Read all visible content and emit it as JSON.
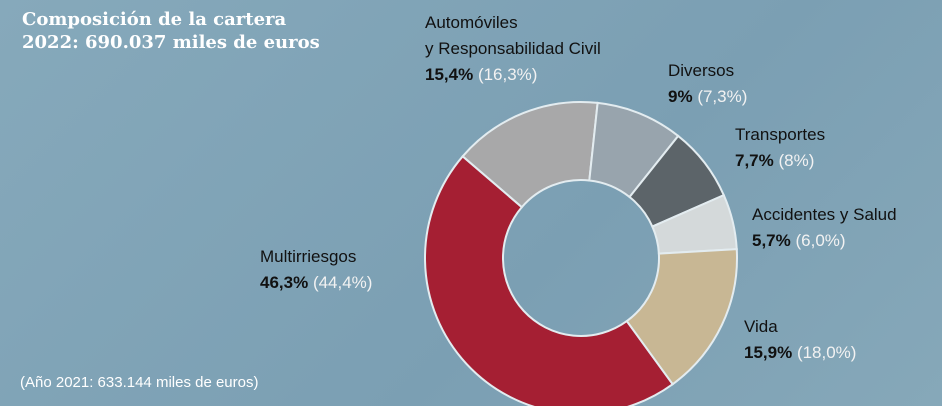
{
  "chart_data": {
    "type": "donut",
    "title": [
      "Composición de la cartera",
      "2022: 690.037 miles de euros"
    ],
    "categories": [
      "Multirriesgos",
      "Automóviles\ny Responsabilidad Civil",
      "Diversos",
      "Transportes",
      "Accidentes y Salud",
      "Vida"
    ],
    "values": [
      46.3,
      15.4,
      9,
      7.7,
      5.7,
      15.9
    ],
    "value_labels": [
      "46,3%",
      "15,4%",
      "9%",
      "7,7%",
      "5,7%",
      "15,9%"
    ],
    "previous_value_labels": [
      "(44,4%)",
      "(16,3%)",
      "(7,3%)",
      "(8%)",
      "(6,0%)",
      "(18,0%)"
    ],
    "colors": [
      "#a51f33",
      "#a8a8a9",
      "#98a4ad",
      "#5c6469",
      "#d4d9da",
      "#c8b794"
    ],
    "footnote": "(Año 2021: 633.144 miles de euros)"
  }
}
